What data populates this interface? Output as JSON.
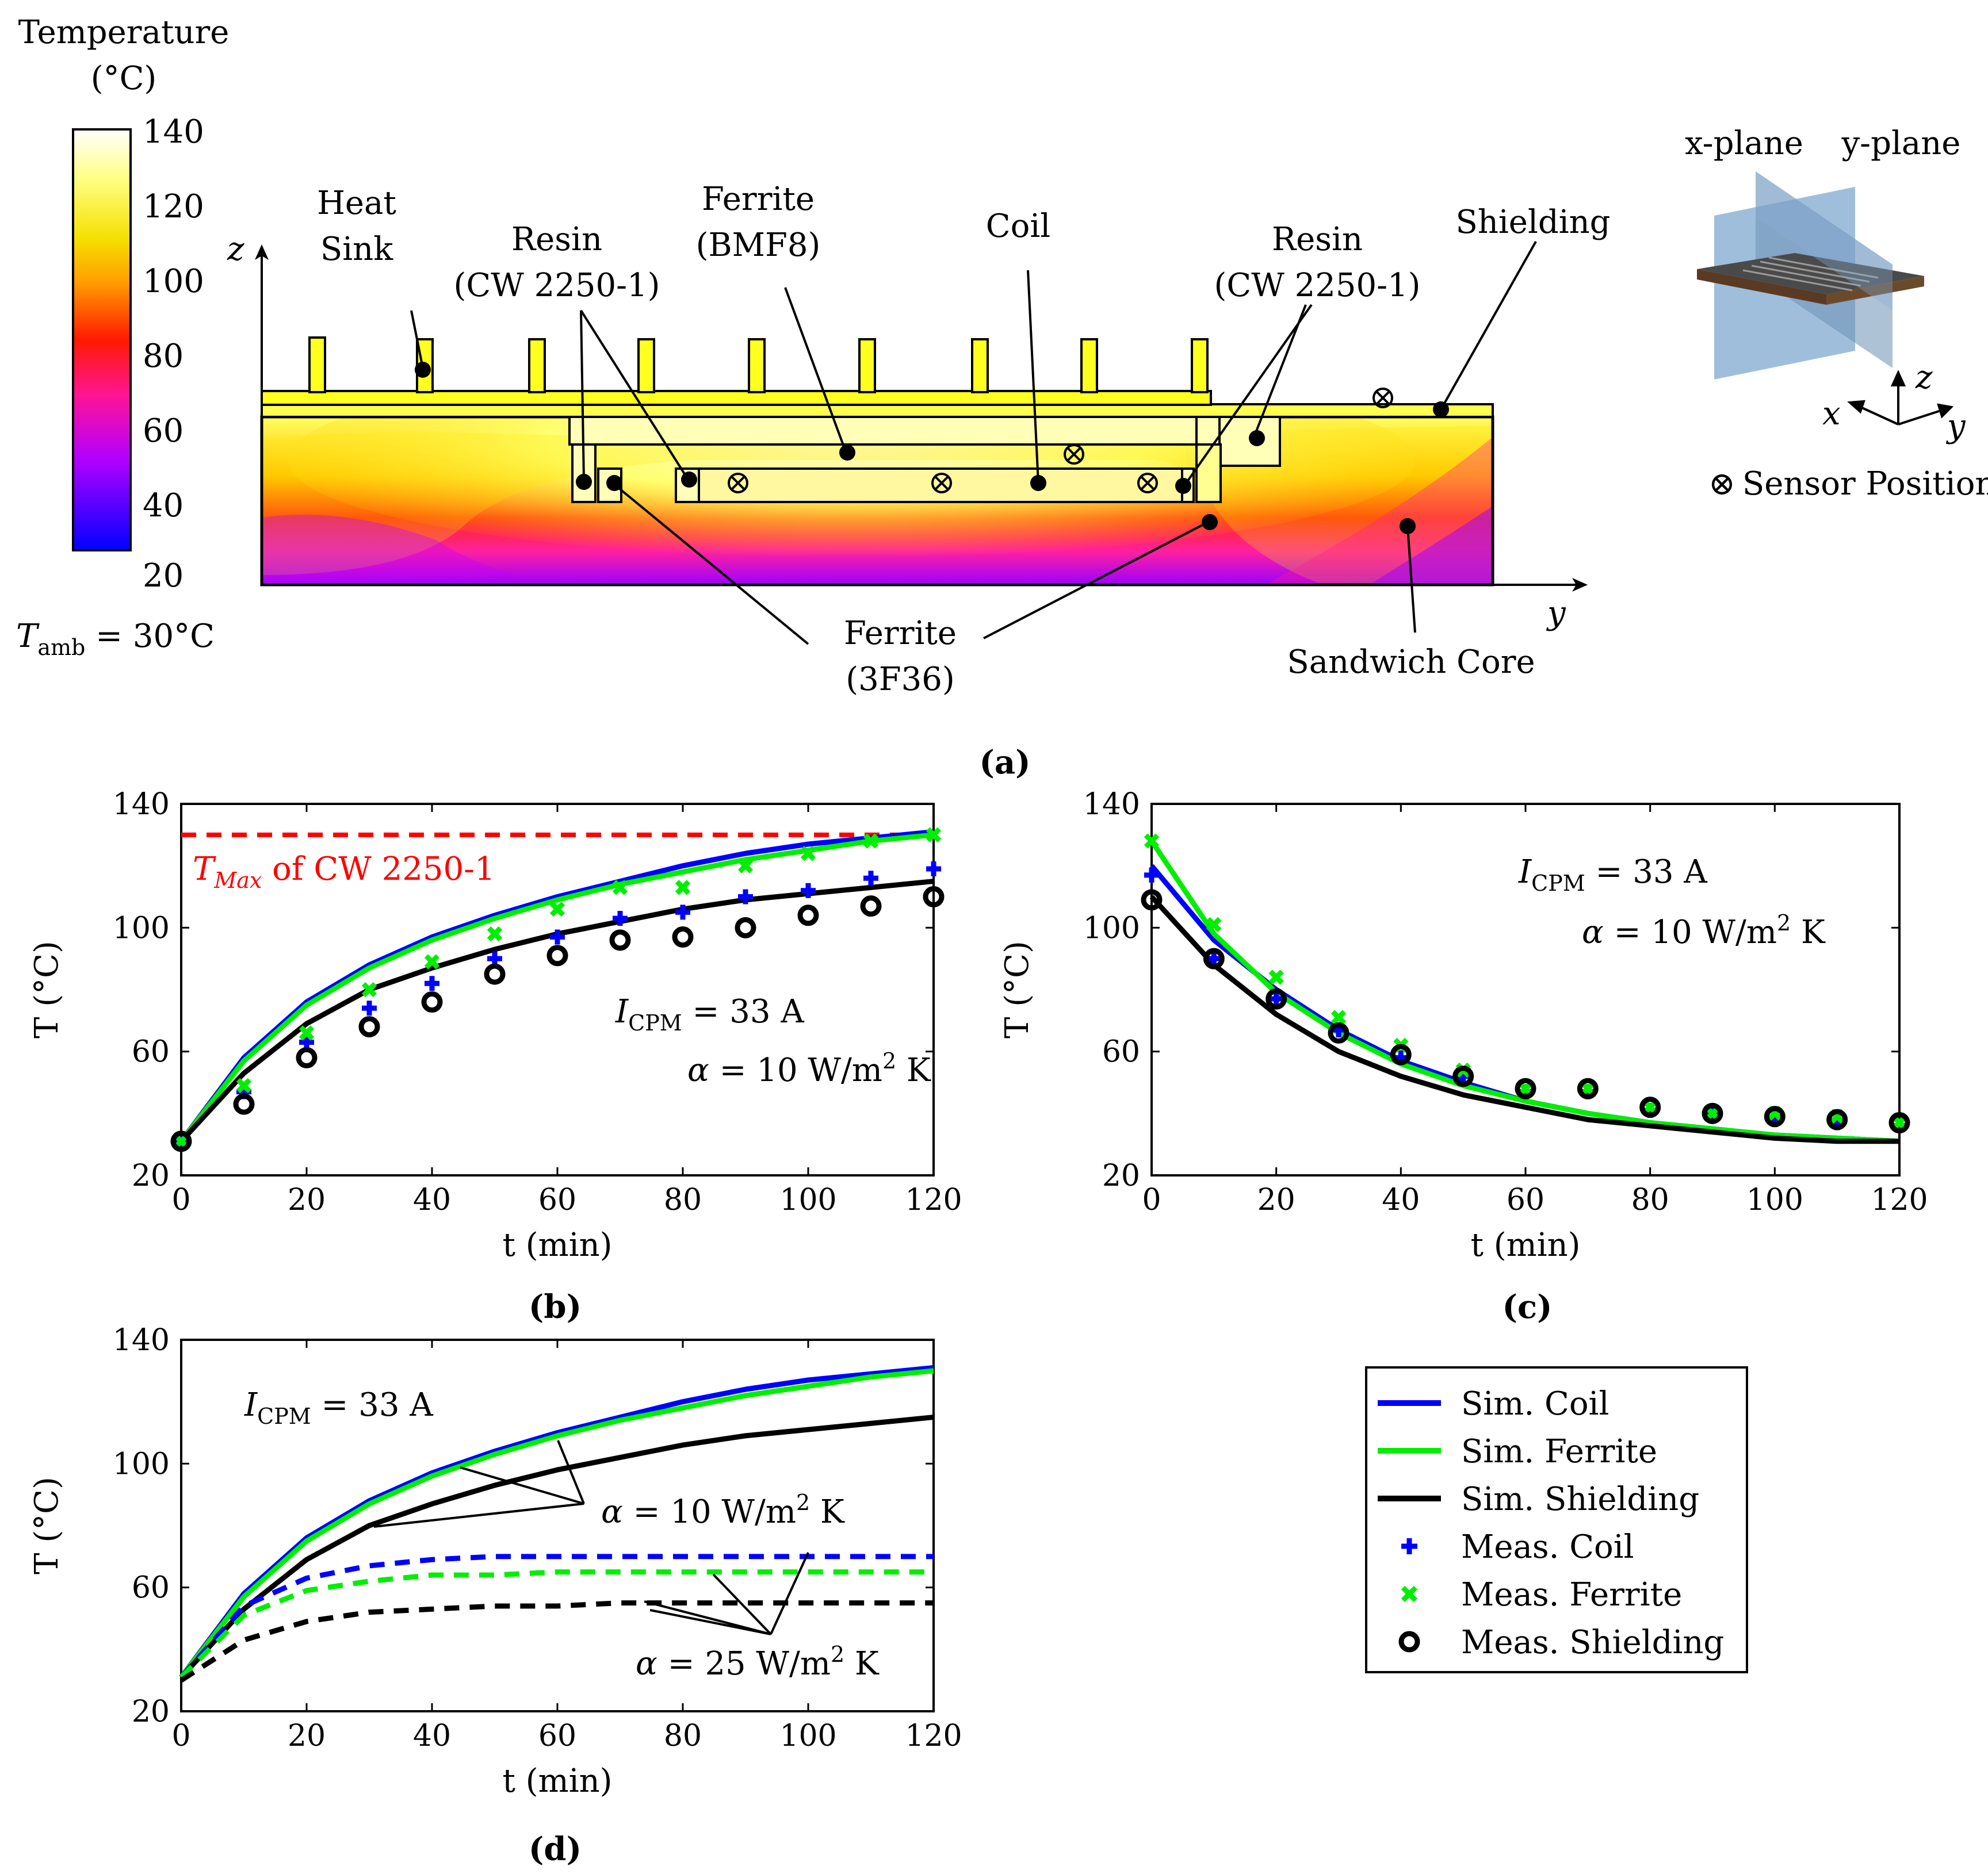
{
  "colors": {
    "coil": "#0000ff",
    "ferrite": "#00ee00",
    "shielding": "#000000",
    "tmax": "#ff0000"
  },
  "panel_a": {
    "label": "(a)",
    "colorbar": {
      "title_line1": "Temperature",
      "title_line2": "(°C)",
      "ticks": [
        "140",
        "120",
        "100",
        "80",
        "60",
        "40",
        "20"
      ],
      "ambient_T": "T",
      "ambient_sub": "amb",
      "ambient_rest": " = 30°C"
    },
    "axes": {
      "z": "z",
      "y": "y"
    },
    "labels": {
      "heat_sink_1": "Heat",
      "heat_sink_2": "Sink",
      "resin_left_1": "Resin",
      "resin_left_2": "(CW 2250-1)",
      "ferrite_bmf8_1": "Ferrite",
      "ferrite_bmf8_2": "(BMF8)",
      "coil": "Coil",
      "resin_right_1": "Resin",
      "resin_right_2": "(CW 2250-1)",
      "shielding": "Shielding",
      "ferrite_3f36_1": "Ferrite",
      "ferrite_3f36_2": "(3F36)",
      "sandwich_core": "Sandwich Core"
    },
    "inset": {
      "x_plane": "x-plane",
      "y_plane": "y-plane",
      "axis_x": "x",
      "axis_y": "y",
      "axis_z": "z",
      "sensor_symbol": "⊗",
      "sensor_label": "Sensor Position"
    }
  },
  "legend": {
    "sim_coil": "Sim. Coil",
    "sim_ferrite": "Sim. Ferrite",
    "sim_shielding": "Sim. Shielding",
    "meas_coil": "Meas. Coil",
    "meas_ferrite": "Meas. Ferrite",
    "meas_shielding": "Meas. Shielding"
  },
  "chart_data": [
    {
      "id": "b",
      "label": "(b)",
      "type": "line",
      "xlabel": "t (min)",
      "ylabel": "T (°C)",
      "xlim": [
        0,
        120
      ],
      "ylim": [
        20,
        140
      ],
      "xticks": [
        0,
        20,
        40,
        60,
        80,
        100,
        120
      ],
      "yticks": [
        20,
        60,
        100,
        140
      ],
      "annotations": {
        "current": "I_CPM = 33 A",
        "alpha": "α = 10 W/m² K",
        "tmax_sym": "T",
        "tmax_sub": "Max",
        "tmax_rest": " of CW 2250-1"
      },
      "hline": {
        "name": "T_Max of CW 2250-1",
        "y": 130,
        "color": "#ff0000",
        "dashed": true
      },
      "series": [
        {
          "name": "Sim. Coil",
          "kind": "line",
          "color": "#0000ff",
          "x": [
            0,
            10,
            20,
            30,
            40,
            50,
            60,
            70,
            80,
            90,
            100,
            110,
            120
          ],
          "values": [
            31,
            58,
            76,
            88,
            97,
            104,
            110,
            115,
            120,
            124,
            127,
            129,
            131
          ]
        },
        {
          "name": "Sim. Ferrite",
          "kind": "line",
          "color": "#00ee00",
          "x": [
            0,
            10,
            20,
            30,
            40,
            50,
            60,
            70,
            80,
            90,
            100,
            110,
            120
          ],
          "values": [
            31,
            57,
            75,
            87,
            96,
            103,
            109,
            114,
            118,
            122,
            125,
            128,
            130
          ]
        },
        {
          "name": "Sim. Shielding",
          "kind": "line",
          "color": "#000000",
          "x": [
            0,
            10,
            20,
            30,
            40,
            50,
            60,
            70,
            80,
            90,
            100,
            110,
            120
          ],
          "values": [
            31,
            53,
            69,
            80,
            87,
            93,
            98,
            102,
            106,
            109,
            111,
            113,
            115
          ]
        },
        {
          "name": "Meas. Coil",
          "kind": "plus",
          "color": "#0000ff",
          "x": [
            0,
            10,
            20,
            30,
            40,
            50,
            60,
            70,
            80,
            90,
            100,
            110,
            120
          ],
          "values": [
            31,
            47,
            63,
            74,
            82,
            90,
            97,
            103,
            105,
            110,
            112,
            116,
            119
          ]
        },
        {
          "name": "Meas. Ferrite",
          "kind": "cross",
          "color": "#00ee00",
          "x": [
            0,
            10,
            20,
            30,
            40,
            50,
            60,
            70,
            80,
            90,
            100,
            110,
            120
          ],
          "values": [
            31,
            49,
            66,
            80,
            89,
            98,
            106,
            113,
            113,
            120,
            124,
            128,
            130
          ]
        },
        {
          "name": "Meas. Shielding",
          "kind": "circle",
          "color": "#000000",
          "x": [
            0,
            10,
            20,
            30,
            40,
            50,
            60,
            70,
            80,
            90,
            100,
            110,
            120
          ],
          "values": [
            31,
            43,
            58,
            68,
            76,
            85,
            91,
            96,
            97,
            100,
            104,
            107,
            110
          ]
        }
      ]
    },
    {
      "id": "c",
      "label": "(c)",
      "type": "line",
      "xlabel": "t (min)",
      "ylabel": "T (°C)",
      "xlim": [
        0,
        120
      ],
      "ylim": [
        20,
        140
      ],
      "xticks": [
        0,
        20,
        40,
        60,
        80,
        100,
        120
      ],
      "yticks": [
        20,
        60,
        100,
        140
      ],
      "annotations": {
        "current": "I_CPM = 33 A",
        "alpha": "α = 10 W/m² K"
      },
      "series": [
        {
          "name": "Sim. Coil",
          "kind": "line",
          "color": "#0000ff",
          "x": [
            0,
            10,
            20,
            30,
            40,
            50,
            60,
            70,
            80,
            90,
            100,
            110,
            120
          ],
          "values": [
            120,
            96,
            80,
            67,
            57,
            50,
            44,
            40,
            37,
            35,
            33,
            32,
            31
          ]
        },
        {
          "name": "Sim. Ferrite",
          "kind": "line",
          "color": "#00ee00",
          "x": [
            0,
            10,
            20,
            30,
            40,
            50,
            60,
            70,
            80,
            90,
            100,
            110,
            120
          ],
          "values": [
            128,
            98,
            79,
            66,
            56,
            49,
            44,
            40,
            37,
            35,
            33,
            32,
            31
          ]
        },
        {
          "name": "Sim. Shielding",
          "kind": "line",
          "color": "#000000",
          "x": [
            0,
            10,
            20,
            30,
            40,
            50,
            60,
            70,
            80,
            90,
            100,
            110,
            120
          ],
          "values": [
            110,
            88,
            72,
            60,
            52,
            46,
            42,
            38,
            36,
            34,
            32,
            31,
            31
          ]
        },
        {
          "name": "Meas. Coil",
          "kind": "plus",
          "color": "#0000ff",
          "x": [
            0,
            10,
            20,
            30,
            40,
            50,
            60,
            70,
            80,
            90,
            100,
            110,
            120
          ],
          "values": [
            117,
            90,
            77,
            67,
            58,
            52,
            47,
            47,
            41,
            40,
            38,
            37,
            36
          ]
        },
        {
          "name": "Meas. Ferrite",
          "kind": "cross",
          "color": "#00ee00",
          "x": [
            0,
            10,
            20,
            30,
            40,
            50,
            60,
            70,
            80,
            90,
            100,
            110,
            120
          ],
          "values": [
            128,
            101,
            84,
            71,
            62,
            54,
            48,
            48,
            42,
            40,
            40,
            39,
            37
          ]
        },
        {
          "name": "Meas. Shielding",
          "kind": "circle",
          "color": "#000000",
          "x": [
            0,
            10,
            20,
            30,
            40,
            50,
            60,
            70,
            80,
            90,
            100,
            110,
            120
          ],
          "values": [
            109,
            90,
            77,
            66,
            59,
            52,
            48,
            48,
            42,
            40,
            39,
            38,
            37
          ]
        }
      ]
    },
    {
      "id": "d",
      "label": "(d)",
      "type": "line",
      "xlabel": "t (min)",
      "ylabel": "T (°C)",
      "xlim": [
        0,
        120
      ],
      "ylim": [
        20,
        140
      ],
      "xticks": [
        0,
        20,
        40,
        60,
        80,
        100,
        120
      ],
      "yticks": [
        20,
        60,
        100,
        140
      ],
      "annotations": {
        "current": "I_CPM = 33 A",
        "alpha10": "α = 10 W/m² K",
        "alpha25": "α = 25 W/m² K"
      },
      "series": [
        {
          "name": "Sim. Coil (α=10)",
          "kind": "line",
          "color": "#0000ff",
          "x": [
            0,
            10,
            20,
            30,
            40,
            50,
            60,
            70,
            80,
            90,
            100,
            110,
            120
          ],
          "values": [
            31,
            58,
            76,
            88,
            97,
            104,
            110,
            115,
            120,
            124,
            127,
            129,
            131
          ]
        },
        {
          "name": "Sim. Ferrite (α=10)",
          "kind": "line",
          "color": "#00ee00",
          "x": [
            0,
            10,
            20,
            30,
            40,
            50,
            60,
            70,
            80,
            90,
            100,
            110,
            120
          ],
          "values": [
            31,
            57,
            75,
            87,
            96,
            103,
            109,
            114,
            118,
            122,
            125,
            128,
            130
          ]
        },
        {
          "name": "Sim. Shielding (α=10)",
          "kind": "line",
          "color": "#000000",
          "x": [
            0,
            10,
            20,
            30,
            40,
            50,
            60,
            70,
            80,
            90,
            100,
            110,
            120
          ],
          "values": [
            31,
            53,
            69,
            80,
            87,
            93,
            98,
            102,
            106,
            109,
            111,
            113,
            115
          ]
        },
        {
          "name": "Sim. Coil (α=25)",
          "kind": "dashed",
          "color": "#0000ff",
          "x": [
            0,
            10,
            20,
            30,
            40,
            50,
            60,
            70,
            80,
            90,
            100,
            110,
            120
          ],
          "values": [
            31,
            54,
            63,
            67,
            69,
            70,
            70,
            70,
            70,
            70,
            70,
            70,
            70
          ]
        },
        {
          "name": "Sim. Ferrite (α=25)",
          "kind": "dashed",
          "color": "#00ee00",
          "x": [
            0,
            10,
            20,
            30,
            40,
            50,
            60,
            70,
            80,
            90,
            100,
            110,
            120
          ],
          "values": [
            31,
            51,
            59,
            62,
            64,
            64,
            65,
            65,
            65,
            65,
            65,
            65,
            65
          ]
        },
        {
          "name": "Sim. Shielding (α=25)",
          "kind": "dashed",
          "color": "#000000",
          "x": [
            0,
            10,
            20,
            30,
            40,
            50,
            60,
            70,
            80,
            90,
            100,
            110,
            120
          ],
          "values": [
            30,
            43,
            49,
            52,
            53,
            54,
            54,
            55,
            55,
            55,
            55,
            55,
            55
          ]
        }
      ]
    }
  ]
}
